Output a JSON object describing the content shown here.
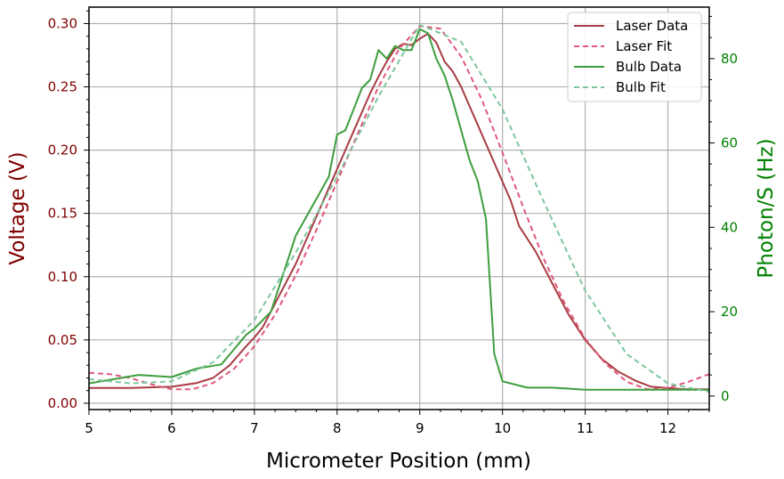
{
  "chart_data": {
    "type": "line",
    "xlabel": "Micrometer Position (mm)",
    "ylabel_left": "Voltage (V)",
    "ylabel_right": "Photon/S (Hz)",
    "xlim": [
      5,
      12.5
    ],
    "ylim_left": [
      -0.005,
      0.313
    ],
    "ylim_right": [
      -3.2,
      92.2
    ],
    "x_ticks": [
      5,
      6,
      7,
      8,
      9,
      10,
      11,
      12
    ],
    "y_left_ticks": [
      0.0,
      0.05,
      0.1,
      0.15,
      0.2,
      0.25,
      0.3
    ],
    "y_left_tick_labels": [
      "0.00",
      "0.05",
      "0.10",
      "0.15",
      "0.20",
      "0.25",
      "0.30"
    ],
    "y_right_ticks": [
      0,
      20,
      40,
      60,
      80
    ],
    "grid": true,
    "legend_position": "top-right",
    "colors": {
      "left_axis": "#800000",
      "right_axis": "#008000",
      "laser_data": "#a83c44",
      "laser_fit": "#e0577a",
      "bulb_data": "#3d9e3d",
      "bulb_fit": "#7dc79d"
    },
    "series": [
      {
        "name": "Laser Data",
        "axis": "left",
        "style": "solid",
        "x": [
          5.0,
          5.5,
          6.0,
          6.3,
          6.5,
          6.7,
          6.9,
          7.0,
          7.1,
          7.3,
          7.5,
          7.7,
          7.9,
          8.0,
          8.1,
          8.2,
          8.3,
          8.4,
          8.5,
          8.6,
          8.7,
          8.8,
          8.9,
          9.0,
          9.1,
          9.2,
          9.3,
          9.4,
          9.5,
          9.6,
          9.7,
          9.8,
          9.9,
          10.0,
          10.1,
          10.2,
          10.4,
          10.6,
          10.8,
          11.0,
          11.2,
          11.4,
          11.6,
          11.8,
          12.0,
          12.2,
          12.5
        ],
        "y": [
          0.012,
          0.012,
          0.013,
          0.016,
          0.02,
          0.03,
          0.045,
          0.052,
          0.06,
          0.085,
          0.11,
          0.14,
          0.17,
          0.185,
          0.2,
          0.215,
          0.23,
          0.245,
          0.258,
          0.27,
          0.28,
          0.284,
          0.283,
          0.288,
          0.292,
          0.285,
          0.27,
          0.262,
          0.25,
          0.235,
          0.22,
          0.205,
          0.19,
          0.175,
          0.16,
          0.14,
          0.12,
          0.095,
          0.07,
          0.05,
          0.035,
          0.025,
          0.018,
          0.013,
          0.012,
          0.011,
          0.011
        ]
      },
      {
        "name": "Laser Fit",
        "axis": "left",
        "style": "dashed",
        "x": [
          5.0,
          5.25,
          5.5,
          5.75,
          6.0,
          6.25,
          6.5,
          6.75,
          7.0,
          7.25,
          7.5,
          7.75,
          8.0,
          8.25,
          8.5,
          8.75,
          9.0,
          9.25,
          9.5,
          9.75,
          10.0,
          10.25,
          10.5,
          10.75,
          11.0,
          11.25,
          11.5,
          11.75,
          12.0,
          12.25,
          12.5
        ],
        "y": [
          0.024,
          0.023,
          0.02,
          0.015,
          0.011,
          0.011,
          0.016,
          0.027,
          0.045,
          0.07,
          0.101,
          0.137,
          0.175,
          0.213,
          0.25,
          0.28,
          0.298,
          0.296,
          0.274,
          0.24,
          0.198,
          0.155,
          0.114,
          0.079,
          0.051,
          0.031,
          0.017,
          0.011,
          0.012,
          0.017,
          0.023
        ]
      },
      {
        "name": "Bulb Data",
        "axis": "right",
        "style": "solid",
        "x": [
          5.0,
          5.3,
          5.6,
          6.0,
          6.3,
          6.6,
          6.9,
          7.0,
          7.2,
          7.5,
          7.7,
          7.9,
          8.0,
          8.1,
          8.2,
          8.3,
          8.4,
          8.5,
          8.6,
          8.7,
          8.8,
          8.9,
          9.0,
          9.1,
          9.2,
          9.3,
          9.4,
          9.5,
          9.6,
          9.7,
          9.8,
          9.9,
          10.0,
          10.3,
          10.6,
          11.0,
          11.5,
          12.0,
          12.5
        ],
        "y": [
          3.0,
          4.0,
          5.0,
          4.5,
          6.5,
          7.5,
          14.5,
          16.0,
          20.0,
          38.0,
          45.0,
          52.0,
          62.0,
          63.0,
          68.0,
          73.0,
          75.0,
          82.0,
          80.0,
          83.0,
          82.0,
          82.0,
          87.0,
          86.0,
          80.0,
          76.0,
          70.0,
          63.0,
          56.0,
          51.0,
          42.0,
          10.0,
          3.5,
          2.0,
          2.0,
          1.5,
          1.5,
          1.5,
          1.5
        ]
      },
      {
        "name": "Bulb Fit",
        "axis": "right",
        "style": "dashed",
        "x": [
          5.0,
          5.5,
          6.0,
          6.5,
          7.0,
          7.5,
          8.0,
          8.5,
          9.0,
          9.5,
          10.0,
          10.5,
          11.0,
          11.5,
          12.0,
          12.5
        ],
        "y": [
          4.0,
          3.0,
          3.5,
          8.0,
          18.0,
          34.0,
          52.0,
          71.0,
          88.0,
          84.0,
          68.0,
          46.0,
          25.0,
          10.0,
          3.0,
          1.0
        ]
      }
    ]
  }
}
